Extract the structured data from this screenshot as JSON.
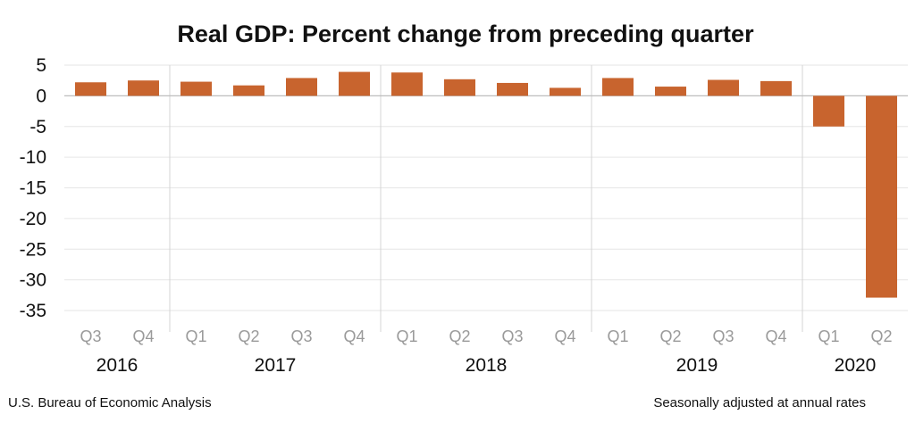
{
  "chart_data": {
    "type": "bar",
    "title": "Real GDP:  Percent change from preceding quarter",
    "categories": [
      "Q3",
      "Q4",
      "Q1",
      "Q2",
      "Q3",
      "Q4",
      "Q1",
      "Q2",
      "Q3",
      "Q4",
      "Q1",
      "Q2",
      "Q3",
      "Q4",
      "Q1",
      "Q2"
    ],
    "years": [
      {
        "label": "2016",
        "count": 2
      },
      {
        "label": "2017",
        "count": 4
      },
      {
        "label": "2018",
        "count": 4
      },
      {
        "label": "2019",
        "count": 4
      },
      {
        "label": "2020",
        "count": 2
      }
    ],
    "values": [
      2.2,
      2.5,
      2.3,
      1.7,
      2.9,
      3.9,
      3.8,
      2.7,
      2.1,
      1.3,
      2.9,
      1.5,
      2.6,
      2.4,
      -5.0,
      -32.9
    ],
    "ylim": [
      -35,
      5
    ],
    "yticks": [
      5,
      0,
      -5,
      -10,
      -15,
      -20,
      -25,
      -30,
      -35
    ],
    "bar_color": "#c8642e",
    "grid": true,
    "source": "U.S. Bureau of Economic Analysis",
    "note": "Seasonally adjusted at annual rates"
  }
}
